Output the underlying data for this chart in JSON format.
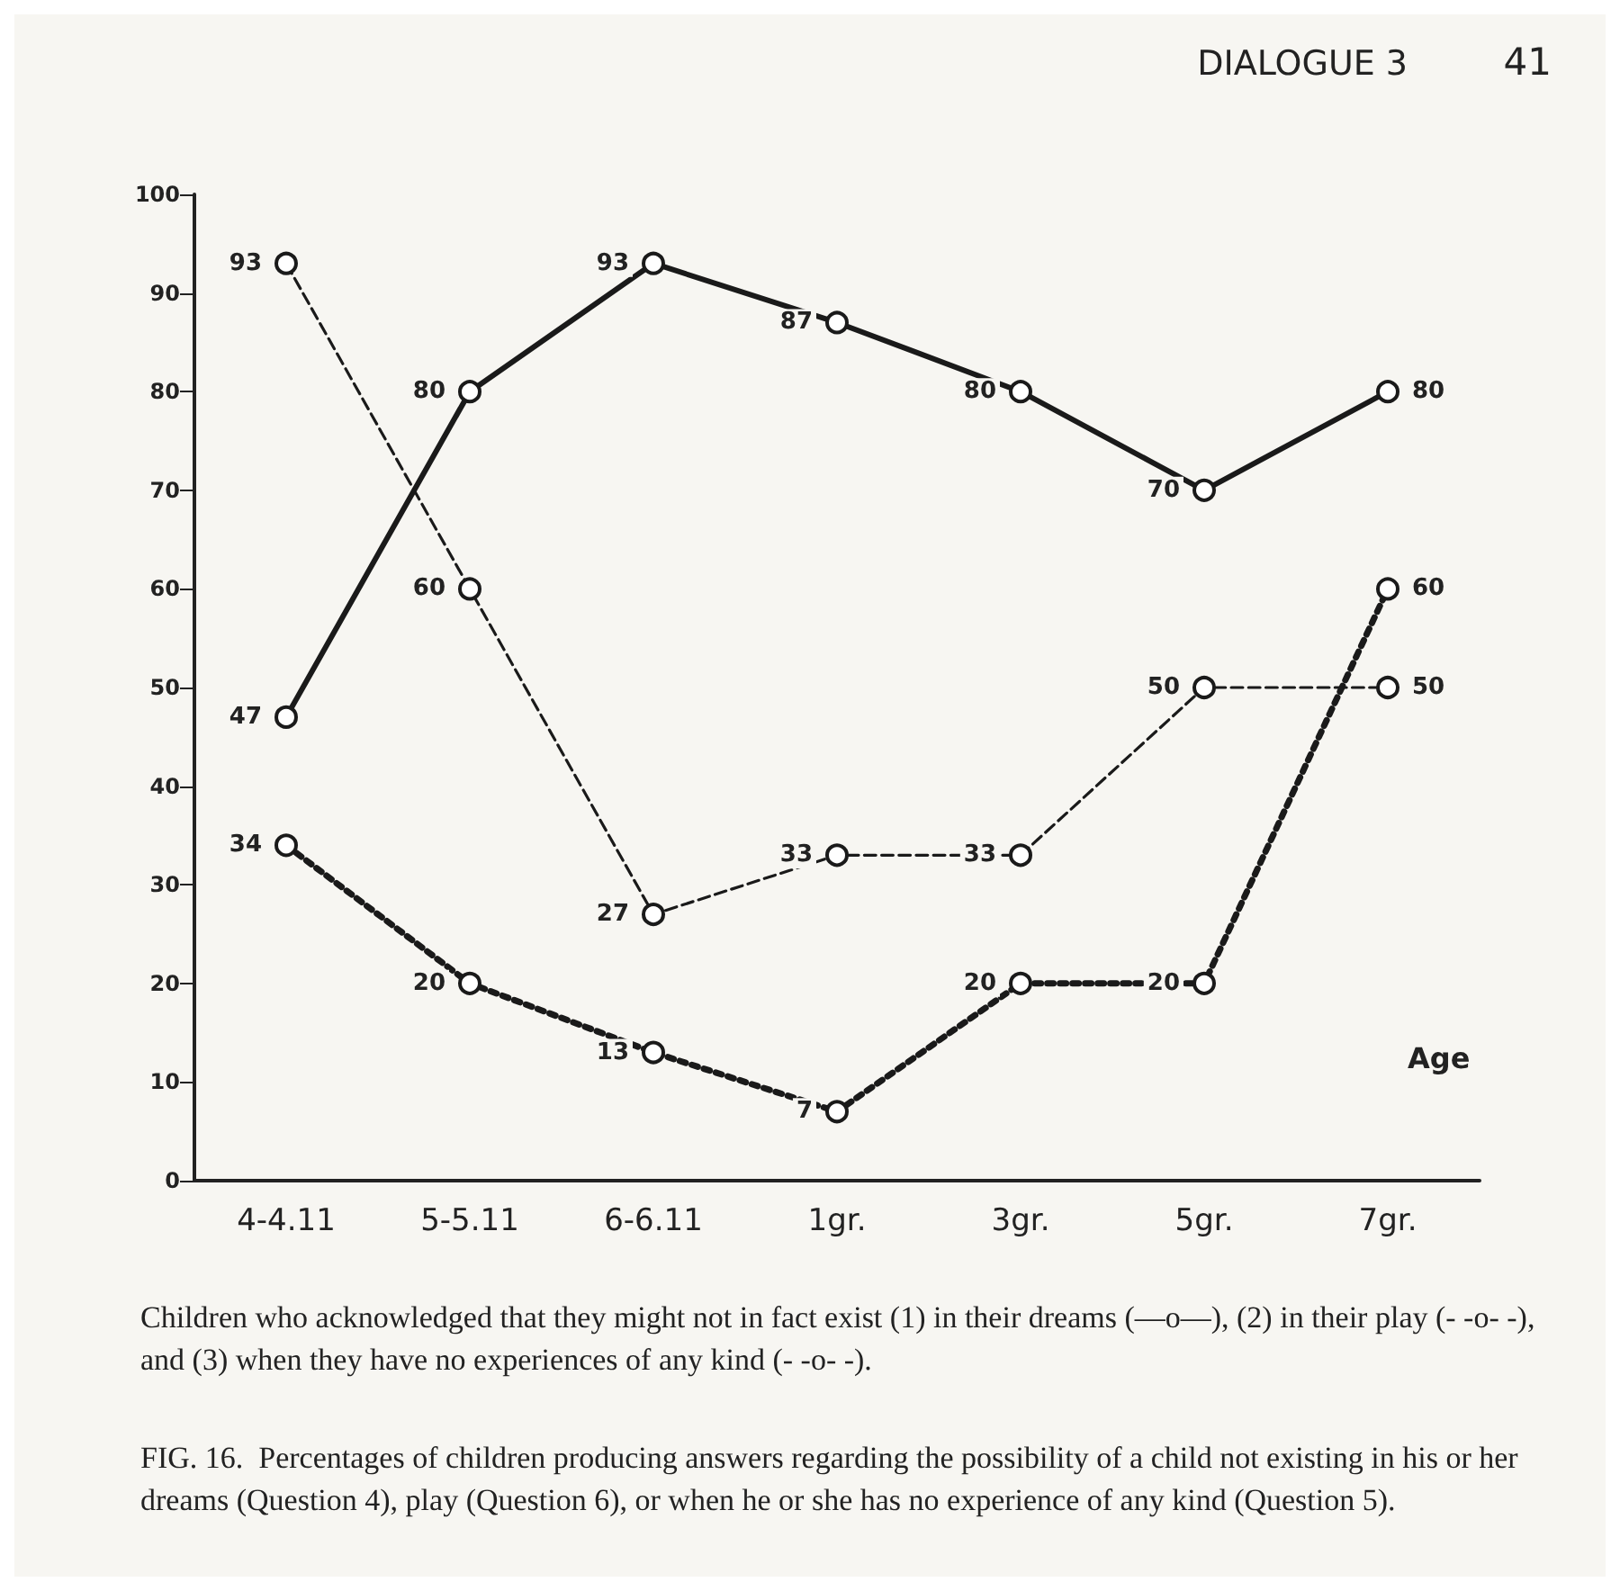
{
  "chart_data": {
    "type": "line",
    "categories": [
      "4-4.11",
      "5-5.11",
      "6-6.11",
      "1gr.",
      "3gr.",
      "5gr.",
      "7gr."
    ],
    "series": [
      {
        "color": "#1a1a1a",
        "line_style": "solid",
        "values": [
          47,
          80,
          93,
          87,
          80,
          70,
          80
        ]
      },
      {
        "color": "#1a1a1a",
        "line_style": "dashed",
        "values": [
          93,
          60,
          27,
          33,
          33,
          50,
          50
        ]
      },
      {
        "color": "#1a1a1a",
        "line_style": "dotted",
        "values": [
          34,
          20,
          13,
          7,
          20,
          20,
          60
        ]
      }
    ],
    "xlabel": "Age",
    "ylim": [
      0,
      100
    ],
    "yticks": [
      0,
      10,
      20,
      30,
      40,
      50,
      60,
      70,
      80,
      90,
      100
    ],
    "grid": false,
    "marker": "circle",
    "data_labels": true,
    "annotations": [
      "DIALOGUE 3",
      "41",
      "Children who acknowledged that they might not in fact exist (1) in their dreams (—o—), (2) in their play (- -o- -), and (3) when they have no experiences of any kind (- -o- -).",
      "FIG. 16.  Percentages of children producing answers regarding the possibility of a child not existing in his or her dreams (Question 4), play (Question 6), or when he or she has no experience of any kind (Question 5)."
    ]
  }
}
